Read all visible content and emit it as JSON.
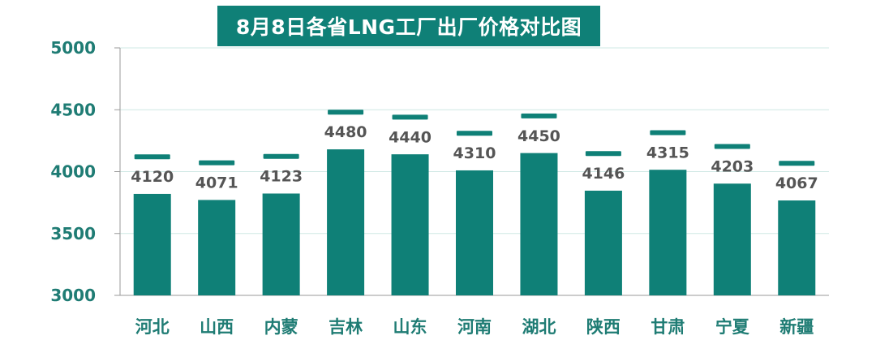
{
  "colors": {
    "bar": "#0f8077",
    "axis_text": "#1f7c74",
    "value_text": "#555555",
    "grid": "#cfe8e4"
  },
  "chart_data": {
    "type": "bar",
    "title": "8月8日各省LNG工厂出厂价格对比图",
    "categories": [
      "河北",
      "山西",
      "内蒙",
      "吉林",
      "山东",
      "河南",
      "湖北",
      "陕西",
      "甘肃",
      "宁夏",
      "新疆"
    ],
    "values": [
      4120,
      4071,
      4123,
      4480,
      4440,
      4310,
      4450,
      4146,
      4315,
      4203,
      4067
    ],
    "ylim": [
      3000,
      5000
    ],
    "yticks": [
      3000,
      3500,
      4000,
      4500,
      5000
    ],
    "grid": true,
    "xlabel": "",
    "ylabel": ""
  }
}
